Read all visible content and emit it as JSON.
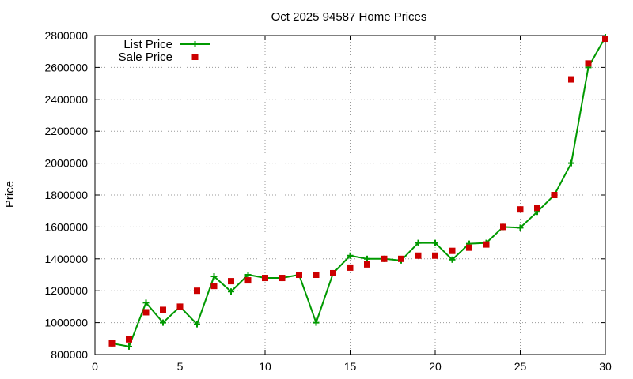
{
  "chart_data": {
    "type": "line",
    "title": "Oct 2025 94587 Home Prices",
    "xlabel": "",
    "ylabel": "Price",
    "xlim": [
      0,
      30
    ],
    "ylim": [
      800000,
      2800000
    ],
    "x_ticks": [
      0,
      5,
      10,
      15,
      20,
      25,
      30
    ],
    "y_ticks": [
      800000,
      1000000,
      1200000,
      1400000,
      1600000,
      1800000,
      2000000,
      2200000,
      2400000,
      2600000,
      2800000
    ],
    "grid": true,
    "legend_position": "top-left",
    "series": [
      {
        "name": "List Price",
        "mark": "line-plus",
        "color": "#009900",
        "x": [
          1,
          2,
          3,
          4,
          5,
          6,
          7,
          8,
          9,
          10,
          11,
          12,
          13,
          14,
          15,
          16,
          17,
          18,
          19,
          20,
          21,
          22,
          23,
          24,
          25,
          26,
          27,
          28,
          29,
          30
        ],
        "values": [
          870000,
          850000,
          1125000,
          1000000,
          1100000,
          990000,
          1290000,
          1195000,
          1300000,
          1280000,
          1280000,
          1300000,
          1000000,
          1310000,
          1420000,
          1400000,
          1400000,
          1390000,
          1500000,
          1500000,
          1395000,
          1495000,
          1500000,
          1600000,
          1595000,
          1695000,
          1800000,
          2000000,
          2600000,
          2790000
        ]
      },
      {
        "name": "Sale Price",
        "mark": "square",
        "color": "#cc0000",
        "x": [
          1,
          2,
          3,
          4,
          5,
          6,
          7,
          8,
          9,
          10,
          11,
          12,
          13,
          14,
          15,
          16,
          17,
          18,
          19,
          20,
          21,
          22,
          23,
          24,
          25,
          26,
          27,
          28,
          29,
          30
        ],
        "values": [
          870000,
          895000,
          1065000,
          1080000,
          1100000,
          1200000,
          1230000,
          1260000,
          1265000,
          1280000,
          1280000,
          1300000,
          1300000,
          1310000,
          1345000,
          1365000,
          1400000,
          1400000,
          1420000,
          1420000,
          1450000,
          1470000,
          1490000,
          1600000,
          1710000,
          1720000,
          1800000,
          2525000,
          2625000,
          2780000
        ]
      }
    ]
  }
}
